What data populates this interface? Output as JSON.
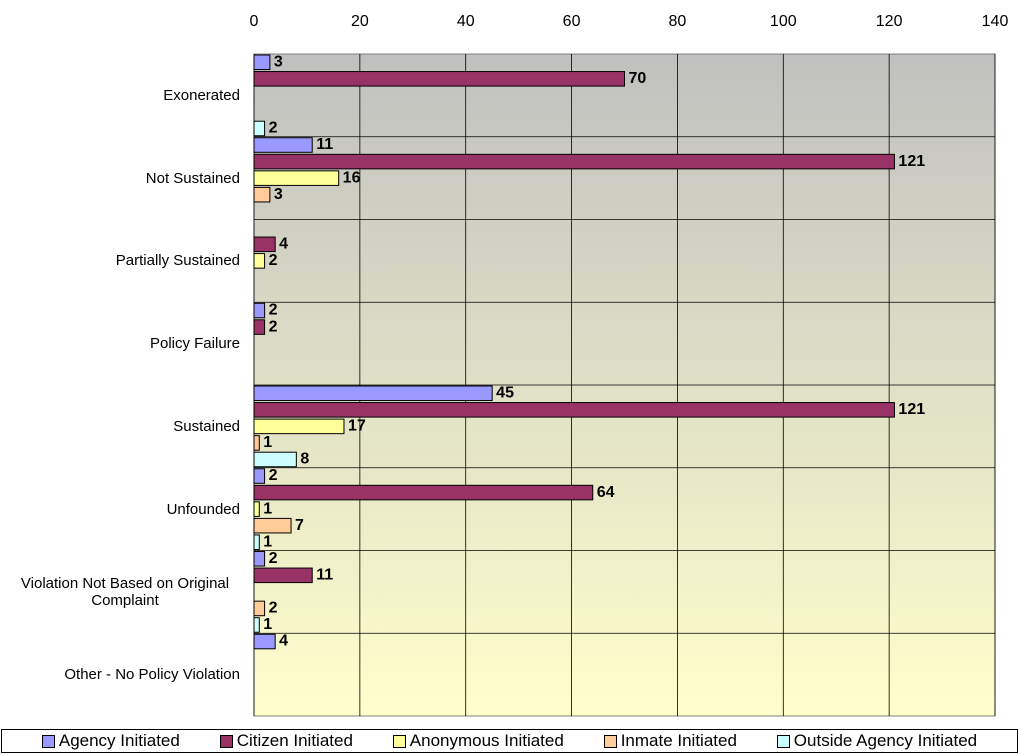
{
  "chart_data": {
    "type": "bar",
    "orientation": "horizontal",
    "categories": [
      "Exonerated",
      "Not Sustained",
      "Partially Sustained",
      "Policy Failure",
      "Sustained",
      "Unfounded",
      "Violation Not Based on Original Complaint",
      "Other - No Policy Violation"
    ],
    "series": [
      {
        "name": "Agency Initiated",
        "color": "#9999ff",
        "values": [
          3,
          11,
          null,
          2,
          45,
          2,
          2,
          4
        ]
      },
      {
        "name": "Citizen Initiated",
        "color": "#993366",
        "values": [
          70,
          121,
          4,
          2,
          121,
          64,
          11,
          null
        ]
      },
      {
        "name": "Anonymous Initiated",
        "color": "#ffff99",
        "values": [
          null,
          16,
          2,
          null,
          17,
          1,
          null,
          null
        ]
      },
      {
        "name": "Inmate Initiated",
        "color": "#ffcc99",
        "values": [
          null,
          3,
          null,
          null,
          1,
          7,
          2,
          null
        ]
      },
      {
        "name": "Outside Agency Initiated",
        "color": "#ccffff",
        "values": [
          2,
          null,
          null,
          null,
          8,
          1,
          1,
          null
        ]
      }
    ],
    "xlim": [
      0,
      140
    ],
    "xticks": [
      0,
      20,
      40,
      60,
      80,
      100,
      120,
      140
    ],
    "grid": true,
    "legend": "bottom"
  }
}
